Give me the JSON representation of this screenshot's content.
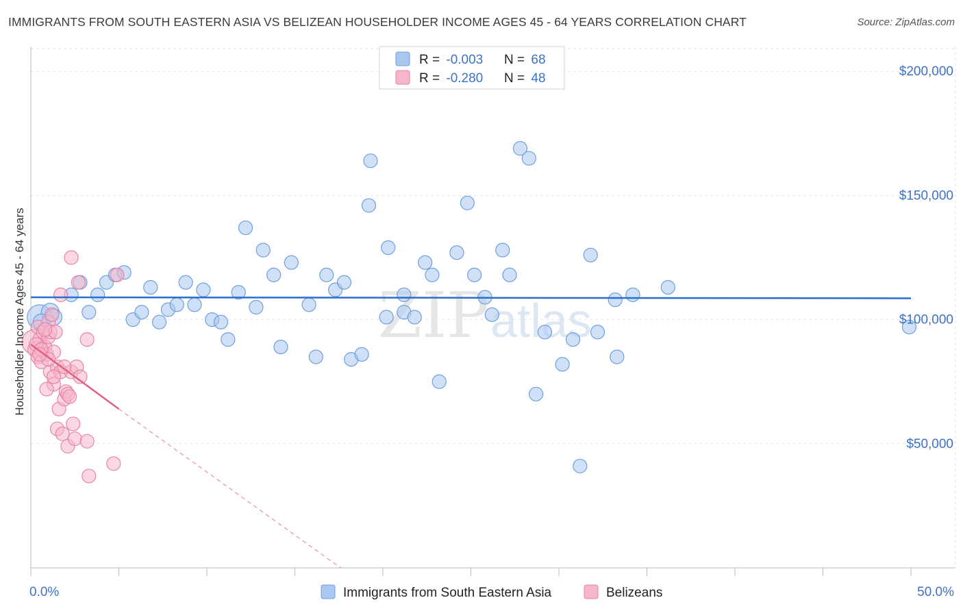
{
  "title": "IMMIGRANTS FROM SOUTH EASTERN ASIA VS BELIZEAN HOUSEHOLDER INCOME AGES 45 - 64 YEARS CORRELATION CHART",
  "source": "Source: ZipAtlas.com",
  "watermark": {
    "left": "ZIP",
    "right": "atlas"
  },
  "legend_top": [
    {
      "r_label": "R = ",
      "r_value": "-0.003",
      "n_label": "N = ",
      "n_value": "68",
      "color": "#a9c8f0"
    },
    {
      "r_label": "R = ",
      "r_value": "-0.280",
      "n_label": "N = ",
      "n_value": "48",
      "color": "#f6b6ca"
    }
  ],
  "chart_data": {
    "type": "scatter",
    "title": "IMMIGRANTS FROM SOUTH EASTERN ASIA VS BELIZEAN HOUSEHOLDER INCOME AGES 45 - 64 YEARS CORRELATION CHART",
    "xlabel": "",
    "ylabel": "Householder Income Ages 45 - 64 years",
    "xlim": [
      0,
      50
    ],
    "ylim": [
      0,
      210000
    ],
    "x_tick_labels": [
      "0.0%",
      "50.0%"
    ],
    "y_ticks": [
      50000,
      100000,
      150000,
      200000
    ],
    "y_tick_labels": [
      "$50,000",
      "$100,000",
      "$150,000",
      "$200,000"
    ],
    "grid": true,
    "legend_position": "bottom-center",
    "series": [
      {
        "name": "Immigrants from South Eastern Asia",
        "color": "#a9c8f0",
        "stroke": "#6f9fdc",
        "trend": {
          "x": [
            0,
            50
          ],
          "y": [
            109000,
            108600
          ],
          "color": "#2a6fd0"
        },
        "points": [
          [
            0.5,
            101000
          ],
          [
            1.1,
            103000
          ],
          [
            2.3,
            110000
          ],
          [
            2.8,
            115000
          ],
          [
            3.3,
            103000
          ],
          [
            3.8,
            110000
          ],
          [
            4.3,
            115000
          ],
          [
            4.8,
            118000
          ],
          [
            5.3,
            119000
          ],
          [
            5.8,
            100000
          ],
          [
            6.3,
            103000
          ],
          [
            6.8,
            113000
          ],
          [
            7.3,
            99000
          ],
          [
            7.8,
            104000
          ],
          [
            8.3,
            106000
          ],
          [
            8.8,
            115000
          ],
          [
            9.3,
            106000
          ],
          [
            9.8,
            112000
          ],
          [
            10.3,
            100000
          ],
          [
            10.8,
            99000
          ],
          [
            11.2,
            92000
          ],
          [
            11.8,
            111000
          ],
          [
            12.2,
            137000
          ],
          [
            12.8,
            105000
          ],
          [
            13.2,
            128000
          ],
          [
            13.8,
            118000
          ],
          [
            14.2,
            89000
          ],
          [
            14.8,
            123000
          ],
          [
            15.8,
            106000
          ],
          [
            16.2,
            85000
          ],
          [
            16.8,
            118000
          ],
          [
            17.3,
            112000
          ],
          [
            17.8,
            115000
          ],
          [
            18.2,
            84000
          ],
          [
            18.8,
            86000
          ],
          [
            19.2,
            146000
          ],
          [
            19.3,
            164000
          ],
          [
            20.2,
            101000
          ],
          [
            20.3,
            129000
          ],
          [
            21.2,
            103000
          ],
          [
            21.2,
            110000
          ],
          [
            21.8,
            101000
          ],
          [
            22.4,
            123000
          ],
          [
            22.8,
            118000
          ],
          [
            23.2,
            75000
          ],
          [
            24.2,
            127000
          ],
          [
            24.8,
            147000
          ],
          [
            25.2,
            118000
          ],
          [
            25.8,
            109000
          ],
          [
            26.2,
            102000
          ],
          [
            26.8,
            128000
          ],
          [
            27.2,
            118000
          ],
          [
            27.8,
            169000
          ],
          [
            28.3,
            165000
          ],
          [
            28.7,
            70000
          ],
          [
            29.2,
            95000
          ],
          [
            30.2,
            82000
          ],
          [
            30.8,
            92000
          ],
          [
            31.2,
            41000
          ],
          [
            31.8,
            126000
          ],
          [
            32.2,
            95000
          ],
          [
            33.2,
            108000
          ],
          [
            33.3,
            85000
          ],
          [
            34.2,
            110000
          ],
          [
            36.2,
            113000
          ],
          [
            49.9,
            97000
          ],
          [
            0.6,
            99000
          ],
          [
            1.3,
            101000
          ]
        ],
        "sizes": [
          18,
          13,
          10,
          10,
          10,
          10,
          10,
          10,
          10,
          10,
          10,
          10,
          10,
          10,
          10,
          10,
          10,
          10,
          10,
          10,
          10,
          10,
          10,
          10,
          10,
          10,
          10,
          10,
          10,
          10,
          10,
          10,
          10,
          10,
          10,
          10,
          10,
          10,
          10,
          10,
          10,
          10,
          10,
          10,
          10,
          10,
          10,
          10,
          10,
          10,
          10,
          10,
          10,
          10,
          10,
          10,
          10,
          10,
          10,
          10,
          10,
          10,
          10,
          10,
          10,
          10,
          12,
          12
        ]
      },
      {
        "name": "Belizeans",
        "color": "#f6b6ca",
        "stroke": "#e784a6",
        "trend": {
          "x": [
            0,
            5
          ],
          "y": [
            90000,
            64000
          ],
          "dash_to": [
            17.6,
            0
          ],
          "color": "#e2607f"
        },
        "points": [
          [
            0.2,
            91000
          ],
          [
            0.3,
            88000
          ],
          [
            0.4,
            97000
          ],
          [
            0.4,
            85000
          ],
          [
            0.5,
            92000
          ],
          [
            0.6,
            83000
          ],
          [
            0.7,
            95000
          ],
          [
            0.8,
            89000
          ],
          [
            0.9,
            86000
          ],
          [
            1.0,
            93000
          ],
          [
            1.0,
            99000
          ],
          [
            1.1,
            79000
          ],
          [
            1.1,
            95000
          ],
          [
            1.2,
            102000
          ],
          [
            1.3,
            87000
          ],
          [
            1.3,
            74000
          ],
          [
            1.4,
            95000
          ],
          [
            1.5,
            81000
          ],
          [
            1.5,
            56000
          ],
          [
            1.6,
            64000
          ],
          [
            1.7,
            110000
          ],
          [
            1.7,
            79000
          ],
          [
            1.8,
            54000
          ],
          [
            1.9,
            68000
          ],
          [
            2.0,
            71000
          ],
          [
            2.1,
            70000
          ],
          [
            2.1,
            49000
          ],
          [
            2.2,
            69000
          ],
          [
            2.3,
            79000
          ],
          [
            2.4,
            58000
          ],
          [
            2.5,
            52000
          ],
          [
            2.6,
            81000
          ],
          [
            2.7,
            115000
          ],
          [
            2.8,
            77000
          ],
          [
            3.2,
            51000
          ],
          [
            3.2,
            92000
          ],
          [
            3.3,
            37000
          ],
          [
            4.7,
            42000
          ],
          [
            4.9,
            118000
          ],
          [
            2.3,
            125000
          ],
          [
            0.3,
            90000
          ],
          [
            0.6,
            88000
          ],
          [
            1.0,
            84000
          ],
          [
            1.3,
            77000
          ],
          [
            0.8,
            96000
          ],
          [
            1.9,
            81000
          ],
          [
            0.5,
            86000
          ],
          [
            0.9,
            72000
          ]
        ],
        "sizes": [
          18,
          12,
          10,
          10,
          10,
          10,
          10,
          10,
          10,
          10,
          10,
          10,
          10,
          10,
          10,
          10,
          10,
          10,
          10,
          10,
          10,
          10,
          10,
          10,
          10,
          10,
          10,
          10,
          10,
          10,
          10,
          10,
          10,
          10,
          10,
          10,
          10,
          10,
          10,
          10,
          10,
          10,
          10,
          10,
          10,
          10,
          10,
          10
        ]
      }
    ]
  }
}
